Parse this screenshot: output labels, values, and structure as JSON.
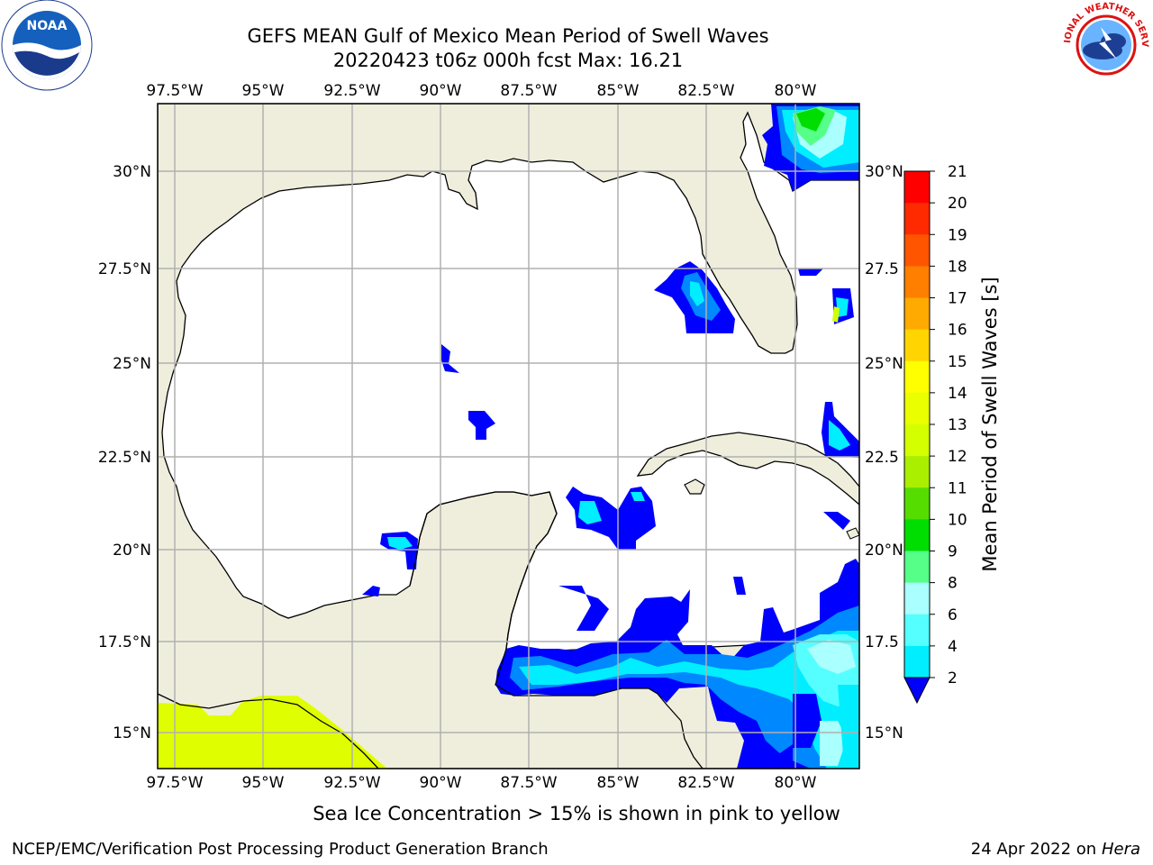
{
  "header": {
    "title_line1": "GEFS MEAN Gulf of Mexico Mean Period of Swell Waves",
    "title_line2": "20220423 t06z 000h fcst   Max: 16.21"
  },
  "logos": {
    "left": "NOAA",
    "right": "NATIONAL WEATHER SERVICE"
  },
  "map": {
    "lon_labels": [
      "97.5°W",
      "95°W",
      "92.5°W",
      "90°W",
      "87.5°W",
      "85°W",
      "82.5°W",
      "80°W"
    ],
    "lat_labels_left": [
      "30°N",
      "27.5°N",
      "25°N",
      "22.5°N",
      "20°N",
      "17.5°N",
      "15°N"
    ],
    "lat_labels_right": [
      "30°N",
      "27.5",
      "25°N",
      "22.5",
      "20°N",
      "17.5",
      "15°N"
    ],
    "land_color": "#efeedd",
    "water_color": "#ffffff",
    "ice_color": "#dfff00"
  },
  "colorbar": {
    "label": "Mean Period of Swell Waves [s]",
    "ticks": [
      "21",
      "20",
      "19",
      "18",
      "17",
      "16",
      "15",
      "14",
      "13",
      "12",
      "11",
      "10",
      "9",
      "8",
      "6",
      "4",
      "2"
    ],
    "colors": [
      "#ff0000",
      "#ff2a00",
      "#ff5500",
      "#ff7f00",
      "#ffaa00",
      "#ffd400",
      "#ffff00",
      "#eaff00",
      "#d4ff00",
      "#aaee00",
      "#55dd00",
      "#00dd00",
      "#55ff88",
      "#aaffff",
      "#55ffff",
      "#00eeff",
      "#00aaff",
      "#0066ff",
      "#0000ff"
    ]
  },
  "captions": {
    "ice_note": "Sea Ice Concentration > 15% is shown in pink to yellow",
    "footer_left": "NCEP/EMC/Verification Post Processing Product Generation Branch",
    "footer_date": "24 Apr 2022 on",
    "footer_machine": "Hera"
  }
}
